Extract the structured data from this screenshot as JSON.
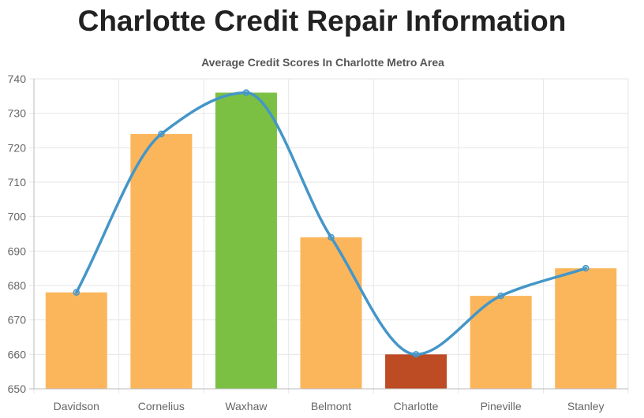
{
  "page": {
    "title": "Charlotte Credit Repair Information"
  },
  "chart_data": {
    "type": "bar",
    "title": "Average Credit Scores In Charlotte Metro Area",
    "categories": [
      "Davidson",
      "Cornelius",
      "Waxhaw",
      "Belmont",
      "Charlotte",
      "Pineville",
      "Stanley"
    ],
    "series": [
      {
        "type": "bar",
        "values": [
          678,
          724,
          736,
          694,
          660,
          677,
          685
        ]
      },
      {
        "type": "line",
        "smooth": true,
        "values": [
          678,
          724,
          736,
          694,
          660,
          677,
          685
        ]
      }
    ],
    "bar_colors": [
      "#fbb65b",
      "#fbb65b",
      "#7bc043",
      "#fbb65b",
      "#bd4b24",
      "#fbb65b",
      "#fbb65b"
    ],
    "line_color": "#4496c8",
    "ylim": [
      650,
      740
    ],
    "yticks": [
      650,
      660,
      670,
      680,
      690,
      700,
      710,
      720,
      730,
      740
    ],
    "grid": true,
    "legend": "none"
  }
}
